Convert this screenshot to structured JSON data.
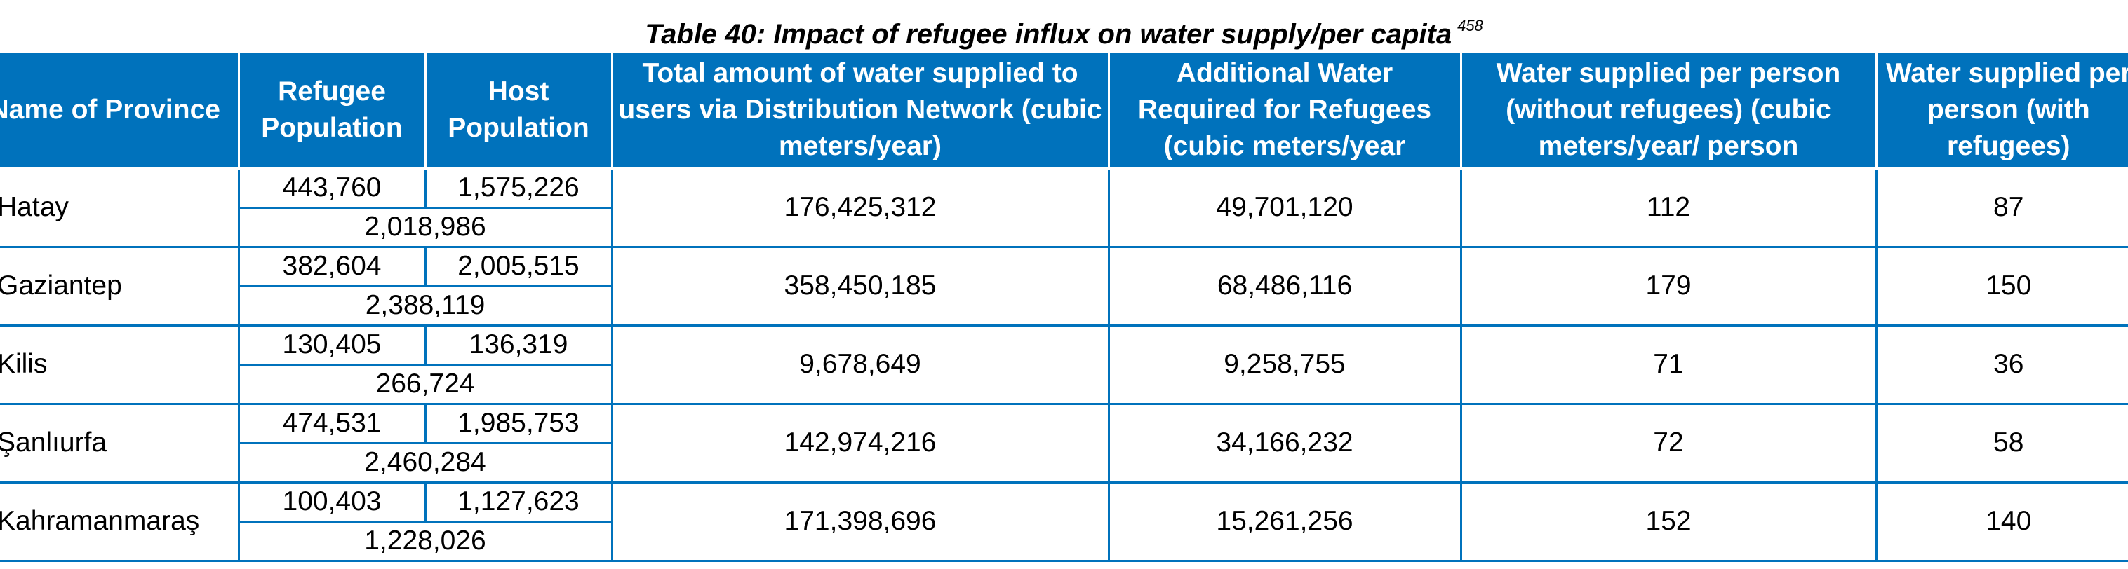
{
  "caption": {
    "title": "Table 40: Impact of refugee influx on water supply/per capita",
    "footnote": "458"
  },
  "headers": {
    "province": "Name of Province",
    "refugee_population": "Refugee Population",
    "host_population": "Host Population",
    "total_water": "Total amount of water supplied to users via Distribution Network (cubic meters/year)",
    "additional_water": "Additional Water Required for Refugees (cubic meters/year",
    "per_person_without": "Water supplied per person (without refugees) (cubic meters/year/ person",
    "per_person_with": "Water supplied per person (with refugees)"
  },
  "rows": [
    {
      "province": "Hatay",
      "refugee": "443,760",
      "host": "1,575,226",
      "total_population": "2,018,986",
      "total_water": "176,425,312",
      "additional_water": "49,701,120",
      "per_person_without": "112",
      "per_person_with": "87"
    },
    {
      "province": "Gaziantep",
      "refugee": "382,604",
      "host": "2,005,515",
      "total_population": "2,388,119",
      "total_water": "358,450,185",
      "additional_water": "68,486,116",
      "per_person_without": "179",
      "per_person_with": "150"
    },
    {
      "province": "Kilis",
      "refugee": "130,405",
      "host": "136,319",
      "total_population": "266,724",
      "total_water": "9,678,649",
      "additional_water": "9,258,755",
      "per_person_without": "71",
      "per_person_with": "36"
    },
    {
      "province": "Şanlıurfa",
      "refugee": "474,531",
      "host": "1,985,753",
      "total_population": "2,460,284",
      "total_water": "142,974,216",
      "additional_water": "34,166,232",
      "per_person_without": "72",
      "per_person_with": "58"
    },
    {
      "province": "Kahramanmaraş",
      "refugee": "100,403",
      "host": "1,127,623",
      "total_population": "1,228,026",
      "total_water": "171,398,696",
      "additional_water": "15,261,256",
      "per_person_without": "152",
      "per_person_with": "140"
    }
  ],
  "colors": {
    "header_bg": "#0072bc",
    "header_text": "#ffffff",
    "border": "#0072bc"
  }
}
